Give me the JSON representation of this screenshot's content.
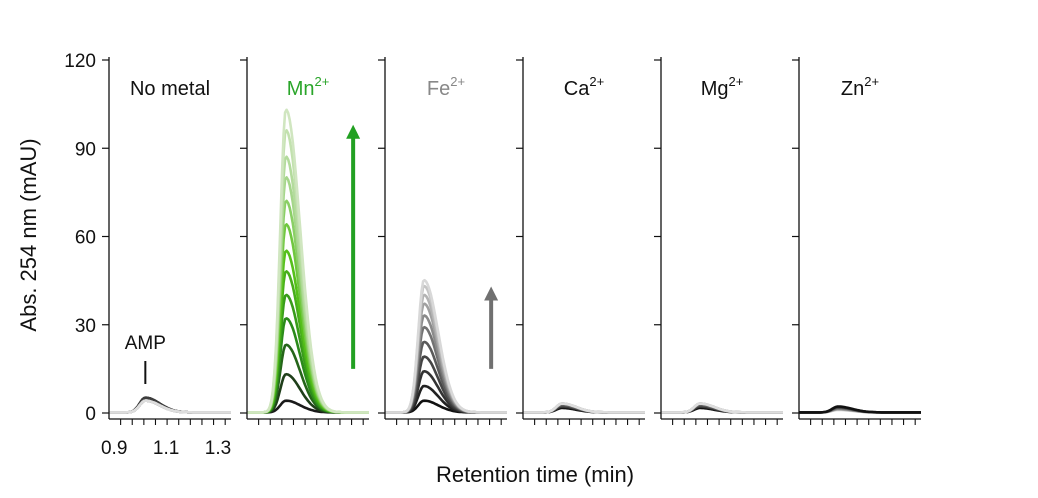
{
  "chart_data": {
    "type": "line",
    "ylabel": "Abs. 254 nm (mAU)",
    "xlabel": "Retention time (min)",
    "yticks": [
      0,
      30,
      60,
      90,
      120
    ],
    "ylim": [
      0,
      120
    ],
    "xticks_labeled": [
      "0.9",
      "1.1",
      "1.3"
    ],
    "xlim": [
      0.88,
      1.35
    ],
    "minor_ticks_per_panel": 10,
    "annotation": "AMP",
    "panels": [
      {
        "title": "No metal",
        "sup": "",
        "title_color": "#111111",
        "palette": [
          "#111111",
          "#dddddd"
        ],
        "peak_x": 1.02,
        "peak_heights": [
          5,
          5,
          5,
          4,
          4,
          4,
          4,
          4,
          4,
          4
        ],
        "arrow": null
      },
      {
        "title": "Mn",
        "sup": "2+",
        "title_color": "#2aa52a",
        "palette": [
          "#1a1a1a",
          "#2a8a1a",
          "#55c01a",
          "#a5d68a",
          "#d0e6c0"
        ],
        "peak_x": 1.03,
        "peak_heights": [
          4,
          13,
          23,
          32,
          40,
          48,
          55,
          64,
          72,
          80,
          87,
          96,
          103
        ],
        "arrow": {
          "color": "#22a022",
          "from": 15,
          "to": 98
        }
      },
      {
        "title": "Fe",
        "sup": "2+",
        "title_color": "#888888",
        "palette": [
          "#111111",
          "#4a4a4a",
          "#9a9a9a",
          "#d8d8d8"
        ],
        "peak_x": 1.03,
        "peak_heights": [
          4,
          9,
          14,
          19,
          24,
          29,
          33,
          37,
          40,
          43,
          45
        ],
        "arrow": {
          "color": "#707070",
          "from": 15,
          "to": 43
        }
      },
      {
        "title": "Ca",
        "sup": "2+",
        "title_color": "#111111",
        "palette": [
          "#111111",
          "#dddddd"
        ],
        "peak_x": 1.03,
        "peak_heights": [
          1.5,
          2,
          2.5,
          3,
          3,
          3
        ],
        "arrow": null
      },
      {
        "title": "Mg",
        "sup": "2+",
        "title_color": "#111111",
        "palette": [
          "#111111",
          "#dddddd"
        ],
        "peak_x": 1.03,
        "peak_heights": [
          1.5,
          2,
          2.5,
          3,
          3,
          3
        ],
        "arrow": null
      },
      {
        "title": "Zn",
        "sup": "2+",
        "title_color": "#111111",
        "palette": [
          "#dddddd",
          "#111111"
        ],
        "peak_x": 1.03,
        "peak_heights": [
          0.8,
          1,
          1.2,
          1.5,
          1.8,
          2
        ],
        "arrow": null
      }
    ]
  }
}
